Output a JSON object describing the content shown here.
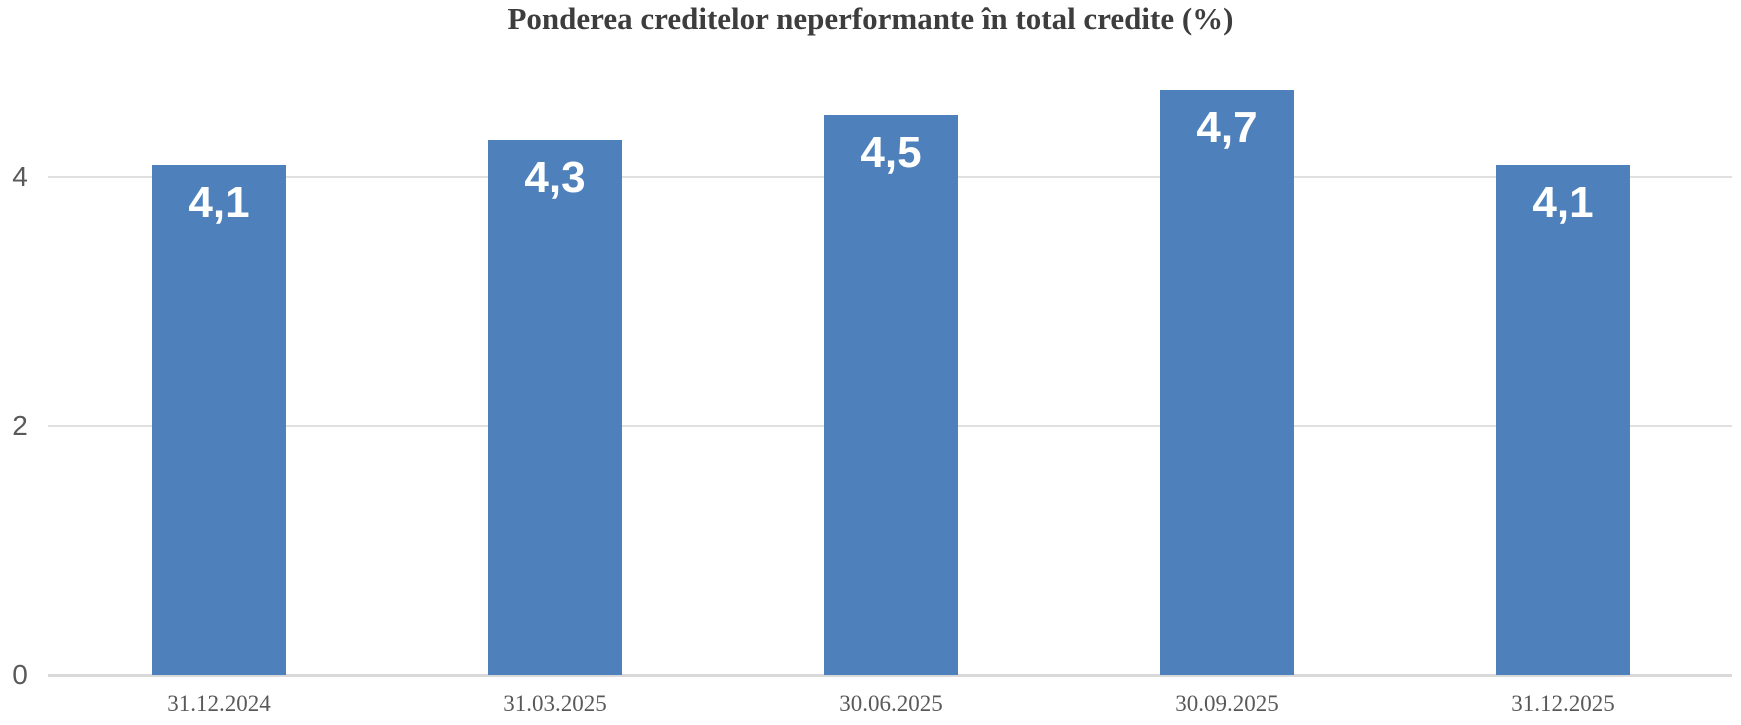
{
  "chart_data": {
    "type": "bar",
    "title": "Ponderea creditelor neperformante în total credite (%)",
    "categories": [
      "31.12.2024",
      "31.03.2025",
      "30.06.2025",
      "30.09.2025",
      "31.12.2025"
    ],
    "values": [
      4.1,
      4.3,
      4.5,
      4.7,
      4.1
    ],
    "value_labels": [
      "4,1",
      "4,3",
      "4,5",
      "4,7",
      "4,1"
    ],
    "xlabel": "",
    "ylabel": "",
    "y_ticks": [
      0,
      2,
      4
    ],
    "ylim": [
      0,
      4.85
    ],
    "grid": true,
    "legend": "none",
    "bar_color": "#4e80bc",
    "value_label_color": "#ffffff",
    "axis_text_color": "#595959",
    "title_color": "#3d3d3d",
    "gridline_color": "#e0e0e0",
    "baseline_color": "#d9d9d9",
    "background_color": "#ffffff"
  }
}
